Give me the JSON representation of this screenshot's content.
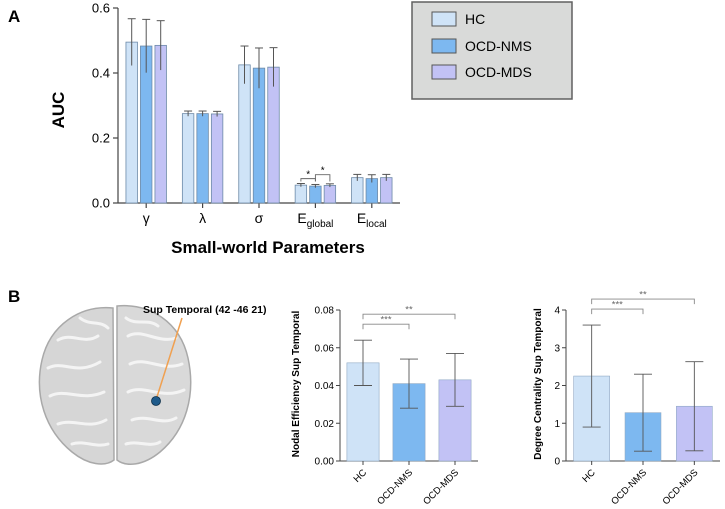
{
  "panel_labels": {
    "a": "A",
    "b": "B"
  },
  "colors": {
    "HC": "#cfe3f7",
    "OCD-NMS": "#7db8f0",
    "OCD-MDS": "#c2c2f5",
    "legend_bg": "#d9dad9",
    "brain_line": "#f0a050",
    "node": "#1e5a8a"
  },
  "chart_data": [
    {
      "type": "bar",
      "categories": [
        "γ",
        "λ",
        "σ",
        "Eglobal",
        "Elocal"
      ],
      "category_labels": [
        {
          "main": "γ",
          "sub": ""
        },
        {
          "main": "λ",
          "sub": ""
        },
        {
          "main": "σ",
          "sub": ""
        },
        {
          "main": "E",
          "sub": "global"
        },
        {
          "main": "E",
          "sub": "local"
        }
      ],
      "series": [
        {
          "name": "HC",
          "values": [
            0.495,
            0.275,
            0.425,
            0.055,
            0.078
          ],
          "errors": [
            0.072,
            0.008,
            0.058,
            0.005,
            0.01
          ]
        },
        {
          "name": "OCD-NMS",
          "values": [
            0.483,
            0.275,
            0.415,
            0.052,
            0.075
          ],
          "errors": [
            0.082,
            0.008,
            0.062,
            0.005,
            0.012
          ]
        },
        {
          "name": "OCD-MDS",
          "values": [
            0.485,
            0.274,
            0.418,
            0.054,
            0.078
          ],
          "errors": [
            0.076,
            0.008,
            0.06,
            0.005,
            0.01
          ]
        }
      ],
      "significance": [
        {
          "category": "Eglobal",
          "from": "HC",
          "to": "OCD-NMS",
          "label": "*"
        },
        {
          "category": "Eglobal",
          "from": "OCD-NMS",
          "to": "OCD-MDS",
          "label": "*"
        }
      ],
      "ylabel": "AUC",
      "xlabel": "Small-world Parameters",
      "ylim": [
        0,
        0.6
      ],
      "yticks": [
        "0.0",
        "0.2",
        "0.4",
        "0.6"
      ],
      "legend_placement": "top-right"
    },
    {
      "type": "bar",
      "categories": [
        "HC",
        "OCD-NMS",
        "OCD-MDS"
      ],
      "values": [
        0.052,
        0.041,
        0.043
      ],
      "errors": [
        0.012,
        0.013,
        0.014
      ],
      "ylabel": "Nodal Efficiency Sup Temporal",
      "ylim": [
        0,
        0.08
      ],
      "yticks": [
        "0.00",
        "0.02",
        "0.04",
        "0.06",
        "0.08"
      ],
      "significance": [
        {
          "from": "HC",
          "to": "OCD-NMS",
          "label": "***"
        },
        {
          "from": "HC",
          "to": "OCD-MDS",
          "label": "**"
        }
      ]
    },
    {
      "type": "bar",
      "categories": [
        "HC",
        "OCD-NMS",
        "OCD-MDS"
      ],
      "values": [
        2.25,
        1.28,
        1.45
      ],
      "errors": [
        1.35,
        1.02,
        1.18
      ],
      "ylabel": "Degree Centrality Sup Temporal",
      "ylim": [
        0,
        4
      ],
      "yticks": [
        "0",
        "1",
        "2",
        "3",
        "4"
      ],
      "significance": [
        {
          "from": "HC",
          "to": "OCD-NMS",
          "label": "***"
        },
        {
          "from": "HC",
          "to": "OCD-MDS",
          "label": "**"
        }
      ]
    }
  ],
  "brain": {
    "annotation": "Sup Temporal (42 -46 21)"
  }
}
